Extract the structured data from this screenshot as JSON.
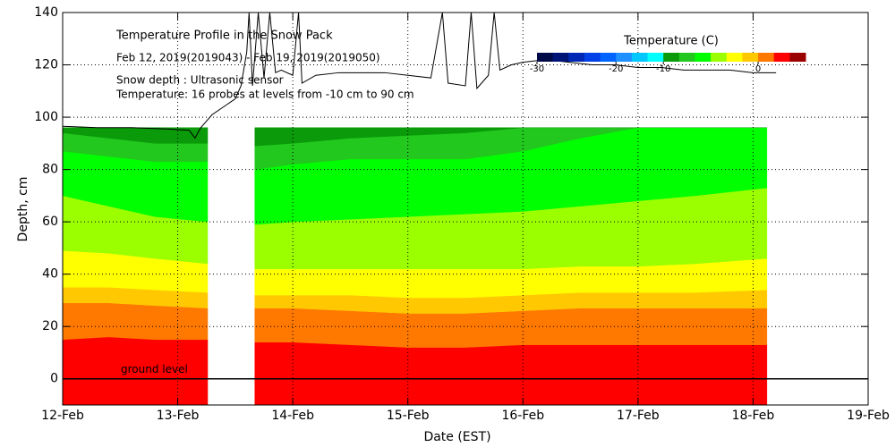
{
  "chart_data": {
    "type": "contour",
    "title": "Temperature Profile in the Snow Pack",
    "subtitle": "Feb 12, 2019(2019043) - Feb 19, 2019(2019050)",
    "notes": [
      "Snow depth : Ultrasonic sensor",
      "Temperature: 16 probes at levels from -10 cm to 90 cm"
    ],
    "x_label": "Date (EST)",
    "y_label": "Depth, cm",
    "xlim": [
      0,
      7
    ],
    "xticks": [
      {
        "value": 0,
        "label": "12-Feb"
      },
      {
        "value": 1,
        "label": "13-Feb"
      },
      {
        "value": 2,
        "label": "14-Feb"
      },
      {
        "value": 3,
        "label": "15-Feb"
      },
      {
        "value": 4,
        "label": "16-Feb"
      },
      {
        "value": 5,
        "label": "17-Feb"
      },
      {
        "value": 6,
        "label": "18-Feb"
      },
      {
        "value": 7,
        "label": "19-Feb"
      }
    ],
    "ylim": [
      -10,
      140
    ],
    "yticks": [
      0,
      20,
      40,
      60,
      80,
      100,
      120,
      140
    ],
    "grid": true,
    "ground_level": {
      "value": 0,
      "label": "ground level"
    },
    "colorbar": {
      "title": "Temperature (C)",
      "levels": [
        -30,
        -28,
        -26,
        -24,
        -22,
        -20,
        -16,
        -12,
        -10,
        -8,
        -6,
        -4,
        -2,
        -1,
        0,
        1,
        2,
        3
      ],
      "colors": [
        "#000a46",
        "#001478",
        "#0028b4",
        "#0040e6",
        "#0064ff",
        "#1e90ff",
        "#00c8ff",
        "#00ffff",
        "#0a9a0a",
        "#22c81e",
        "#00ff00",
        "#9bff00",
        "#ffff00",
        "#ffc800",
        "#ff7800",
        "#ff0000",
        "#9b0000"
      ],
      "ticks": [
        -30,
        -20,
        -10,
        0
      ]
    },
    "field": {
      "x": [
        0,
        0.4,
        0.8,
        1.26,
        1.45,
        1.67,
        2,
        2.5,
        3,
        3.5,
        4,
        4.5,
        5,
        5.5,
        6.12
      ],
      "top": [
        96,
        96,
        96,
        96,
        null,
        96,
        96,
        96,
        96,
        96,
        96,
        96,
        96,
        96,
        96
      ],
      "isotherms": [
        {
          "level": 1,
          "depths": [
            15,
            16,
            15,
            15,
            null,
            14,
            14,
            13,
            12,
            12,
            13,
            13,
            13,
            13,
            13
          ]
        },
        {
          "level": 0,
          "depths": [
            29,
            29,
            28,
            27,
            null,
            27,
            27,
            26,
            25,
            25,
            26,
            27,
            27,
            27,
            27
          ]
        },
        {
          "level": -1,
          "depths": [
            35,
            35,
            34,
            33,
            null,
            32,
            32,
            32,
            31,
            31,
            32,
            33,
            33,
            33,
            34
          ]
        },
        {
          "level": -2,
          "depths": [
            49,
            48,
            46,
            44,
            null,
            42,
            42,
            42,
            42,
            42,
            42,
            43,
            43,
            44,
            46
          ]
        },
        {
          "level": -4,
          "depths": [
            70,
            66,
            62,
            60,
            null,
            59,
            60,
            61,
            62,
            63,
            64,
            66,
            68,
            70,
            73
          ]
        },
        {
          "level": -6,
          "depths": [
            87,
            85,
            83,
            83,
            null,
            80,
            82,
            84,
            84,
            84,
            87,
            92,
            96,
            96,
            96
          ]
        },
        {
          "level": -8,
          "depths": [
            94,
            92,
            90,
            90,
            null,
            89,
            90,
            92,
            93,
            94,
            96,
            96,
            96,
            96,
            96
          ]
        }
      ]
    },
    "snow_depth": {
      "color": "#000000",
      "x": [
        0,
        0.3,
        0.6,
        0.9,
        1.1,
        1.15,
        1.2,
        1.3,
        1.4,
        1.5,
        1.55,
        1.6,
        1.62,
        1.65,
        1.7,
        1.75,
        1.8,
        1.85,
        1.9,
        2.0,
        2.05,
        2.08,
        2.2,
        2.4,
        2.6,
        2.8,
        3.0,
        3.2,
        3.3,
        3.35,
        3.5,
        3.55,
        3.6,
        3.7,
        3.75,
        3.8,
        3.9,
        4.0,
        4.2,
        4.4,
        4.6,
        4.8,
        5.0,
        5.2,
        5.4,
        5.6,
        5.8,
        6.0,
        6.2
      ],
      "values": [
        96.5,
        96,
        96,
        95.5,
        95,
        92,
        96,
        101,
        104,
        107,
        112,
        125,
        140,
        112,
        140,
        115,
        140,
        117,
        118,
        116,
        140,
        113,
        116,
        117,
        117,
        117,
        116,
        115,
        140,
        113,
        112,
        140,
        111,
        116,
        140,
        118,
        120,
        121,
        122,
        121,
        120,
        120,
        119,
        119,
        118,
        118,
        118,
        117,
        117
      ]
    }
  }
}
